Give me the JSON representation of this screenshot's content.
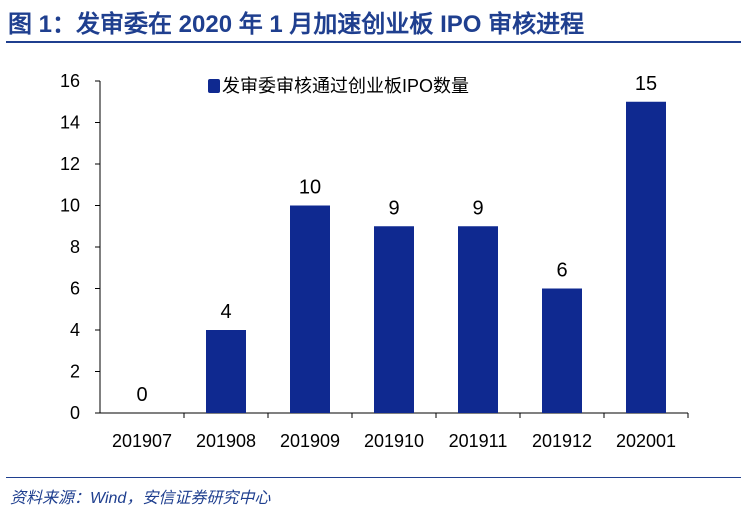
{
  "title": "图 1：发审委在 2020 年 1 月加速创业板 IPO 审核进程",
  "source": "资料来源：Wind，安信证券研究中心",
  "colors": {
    "bar": "#0f2990",
    "title": "#1f3f8f"
  },
  "chart_data": {
    "type": "bar",
    "categories": [
      "201907",
      "201908",
      "201909",
      "201910",
      "201911",
      "201912",
      "202001"
    ],
    "series": [
      {
        "name": "发审委审核通过创业板IPO数量",
        "values": [
          0,
          4,
          10,
          9,
          9,
          6,
          15
        ]
      }
    ],
    "ylim": [
      0,
      16
    ],
    "yticks": [
      0,
      2,
      4,
      6,
      8,
      10,
      12,
      14,
      16
    ],
    "grid": false,
    "legend": "top-center",
    "data_labels": true
  }
}
